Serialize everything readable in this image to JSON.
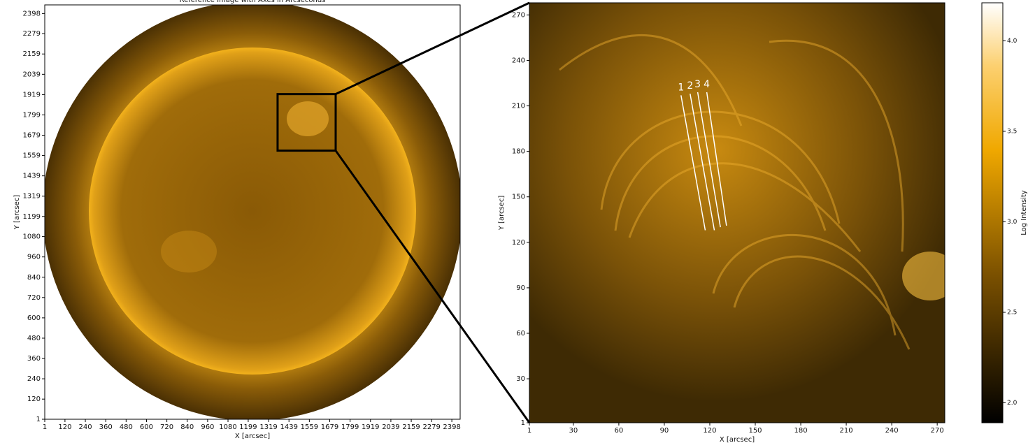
{
  "chart_data": [
    {
      "type": "image",
      "title": "Reference Image with Axes in Arcseconds",
      "x_label": "X [arcsec]",
      "y_label": "Y [arcsec]",
      "xlim": [
        1,
        2447
      ],
      "ylim": [
        1,
        2449
      ],
      "xticks": [
        1,
        120,
        240,
        360,
        480,
        600,
        720,
        840,
        960,
        1080,
        1199,
        1319,
        1439,
        1559,
        1679,
        1799,
        1919,
        2039,
        2159,
        2279,
        2398
      ],
      "yticks": [
        1,
        120,
        240,
        360,
        480,
        600,
        720,
        840,
        960,
        1080,
        1199,
        1319,
        1439,
        1559,
        1679,
        1799,
        1919,
        2039,
        2159,
        2279,
        2398
      ],
      "zoom_box": {
        "x": [
          1372,
          1714
        ],
        "y": [
          1588,
          1922
        ]
      }
    },
    {
      "type": "image",
      "x_label": "X [arcsec]",
      "y_label": "Y [arcsec]",
      "xlim": [
        1,
        275
      ],
      "ylim": [
        1,
        278
      ],
      "xticks": [
        1,
        30,
        60,
        90,
        120,
        150,
        180,
        210,
        240,
        270
      ],
      "yticks": [
        1,
        30,
        60,
        90,
        120,
        150,
        180,
        210,
        240,
        270
      ],
      "slits": [
        {
          "label": "1",
          "x": [
            101,
            117
          ],
          "y": [
            217,
            128
          ]
        },
        {
          "label": "2",
          "x": [
            107,
            123
          ],
          "y": [
            218,
            128
          ]
        },
        {
          "label": "3",
          "x": [
            112,
            127
          ],
          "y": [
            219,
            130
          ]
        },
        {
          "label": "4",
          "x": [
            118,
            131
          ],
          "y": [
            219,
            131
          ]
        }
      ]
    },
    {
      "type": "colorbar",
      "label": "Log Intensity",
      "ylim": [
        1.89,
        4.21
      ],
      "yticks": [
        {
          "value": 2,
          "label": "2.0"
        },
        {
          "value": 2.5,
          "label": "2.5"
        },
        {
          "value": 3,
          "label": "3.0"
        },
        {
          "value": 3.5,
          "label": "3.5"
        },
        {
          "value": 4,
          "label": "4.0"
        }
      ]
    }
  ]
}
